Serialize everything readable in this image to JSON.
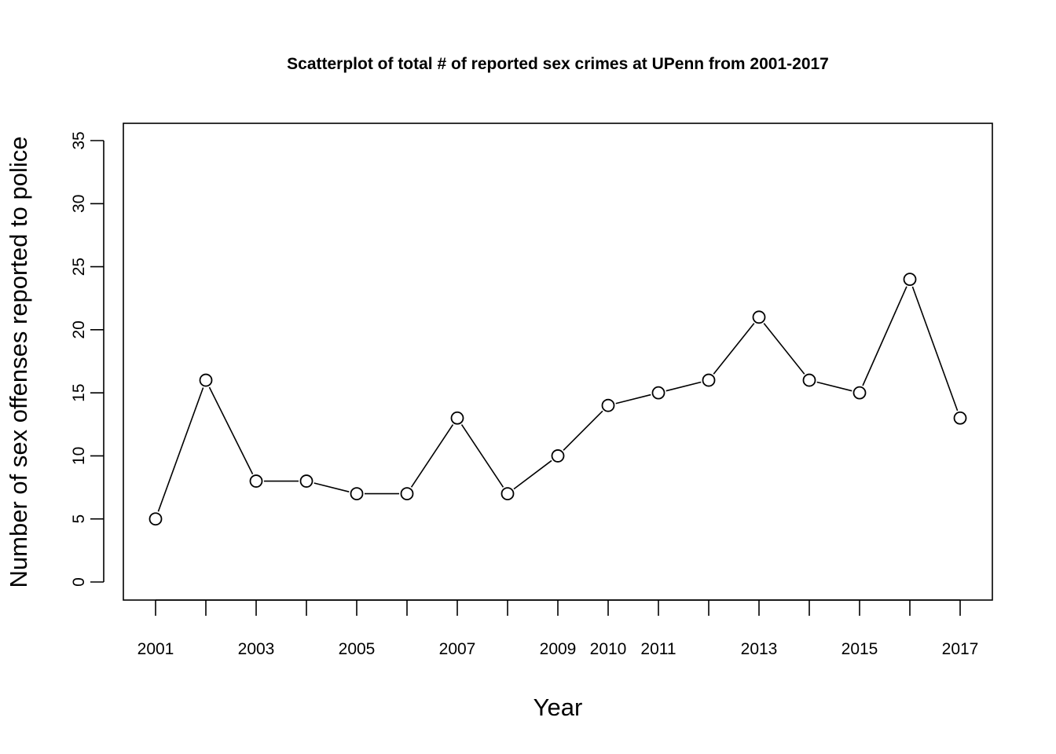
{
  "chart_data": {
    "type": "line",
    "title": "Scatterplot of total # of reported sex crimes at UPenn from 2001-2017",
    "xlabel": "Year",
    "ylabel": "Number of sex offenses reported to police",
    "x": [
      2001,
      2002,
      2003,
      2004,
      2005,
      2006,
      2007,
      2008,
      2009,
      2010,
      2011,
      2012,
      2013,
      2014,
      2015,
      2016,
      2017
    ],
    "values": [
      5,
      16,
      8,
      8,
      7,
      7,
      13,
      7,
      10,
      14,
      15,
      16,
      21,
      16,
      15,
      24,
      13
    ],
    "xlim": [
      2001,
      2017
    ],
    "ylim": [
      0,
      35
    ],
    "x_ticks": [
      2001,
      2002,
      2003,
      2004,
      2005,
      2006,
      2007,
      2008,
      2009,
      2010,
      2011,
      2012,
      2013,
      2014,
      2015,
      2016,
      2017
    ],
    "x_tick_labels": [
      "2001",
      "",
      "2003",
      "",
      "2005",
      "",
      "2007",
      "",
      "2009",
      "2010",
      "2011",
      "",
      "2013",
      "",
      "2015",
      "",
      "2017"
    ],
    "y_ticks": [
      0,
      5,
      10,
      15,
      20,
      25,
      30,
      35
    ],
    "y_tick_labels": [
      "0",
      "5",
      "10",
      "15",
      "20",
      "25",
      "30",
      "35"
    ],
    "marker": "open-circle",
    "grid": false,
    "legend": "none",
    "colors": {
      "line": "#000000",
      "marker_fill": "#ffffff",
      "background": "#ffffff"
    }
  }
}
